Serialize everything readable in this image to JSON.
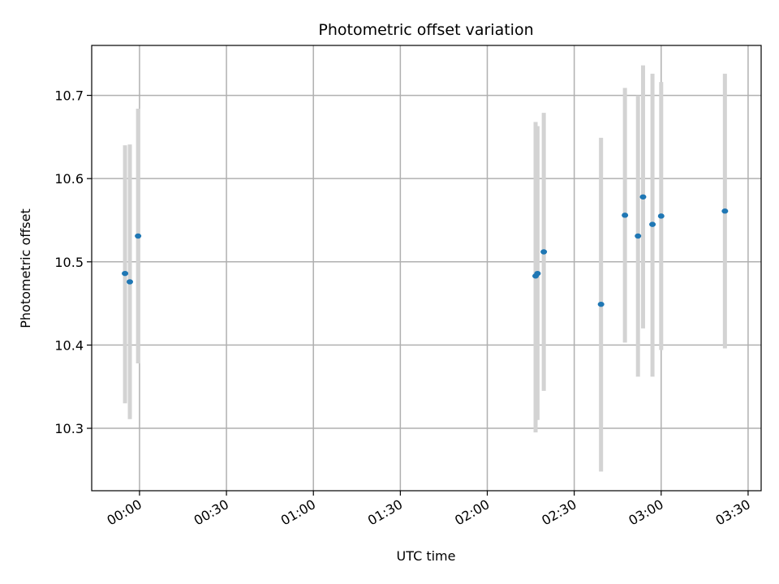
{
  "chart_data": {
    "type": "scatter",
    "title": "Photometric offset variation",
    "xlabel": "UTC time",
    "ylabel": "Photometric offset",
    "xlim": [
      "23:43:30",
      "03:34:30"
    ],
    "ylim": [
      10.225,
      10.76
    ],
    "grid": true,
    "x_ticks": [
      "00:00",
      "00:30",
      "01:00",
      "01:30",
      "02:00",
      "02:30",
      "03:00",
      "03:30"
    ],
    "y_ticks": [
      "10.3",
      "10.4",
      "10.5",
      "10.6",
      "10.7"
    ],
    "colors": {
      "points": "#1f77b4",
      "error_bars": "#d3d3d3",
      "grid": "#b0b0b0"
    },
    "series": [
      {
        "points": [
          {
            "x": "23:55:00",
            "y": 10.486,
            "ylo": 10.33,
            "yhi": 10.64
          },
          {
            "x": "23:56:40",
            "y": 10.476,
            "ylo": 10.311,
            "yhi": 10.641
          },
          {
            "x": "23:59:30",
            "y": 10.531,
            "ylo": 10.378,
            "yhi": 10.684
          },
          {
            "x": "02:16:40",
            "y": 10.483,
            "ylo": 10.295,
            "yhi": 10.668
          },
          {
            "x": "02:17:20",
            "y": 10.486,
            "ylo": 10.31,
            "yhi": 10.663
          },
          {
            "x": "02:19:30",
            "y": 10.512,
            "ylo": 10.345,
            "yhi": 10.679
          },
          {
            "x": "02:39:15",
            "y": 10.449,
            "ylo": 10.248,
            "yhi": 10.649
          },
          {
            "x": "02:47:30",
            "y": 10.556,
            "ylo": 10.403,
            "yhi": 10.709
          },
          {
            "x": "02:52:00",
            "y": 10.531,
            "ylo": 10.362,
            "yhi": 10.7
          },
          {
            "x": "02:53:45",
            "y": 10.578,
            "ylo": 10.42,
            "yhi": 10.736
          },
          {
            "x": "02:57:00",
            "y": 10.545,
            "ylo": 10.362,
            "yhi": 10.726
          },
          {
            "x": "03:00:00",
            "y": 10.555,
            "ylo": 10.394,
            "yhi": 10.716
          },
          {
            "x": "03:22:00",
            "y": 10.561,
            "ylo": 10.396,
            "yhi": 10.726
          }
        ]
      }
    ]
  }
}
